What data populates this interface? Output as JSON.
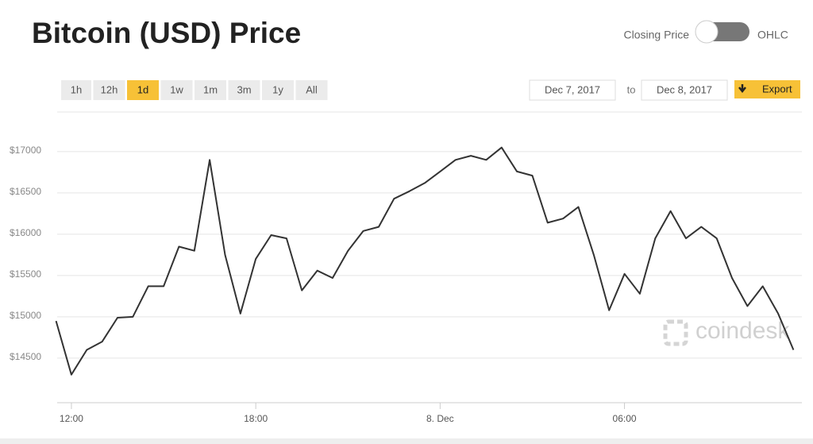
{
  "header": {
    "title": "Bitcoin (USD) Price",
    "toggle_left": "Closing Price",
    "toggle_right": "OHLC"
  },
  "ranges": [
    {
      "label": "1h"
    },
    {
      "label": "12h"
    },
    {
      "label": "1d",
      "active": true
    },
    {
      "label": "1w"
    },
    {
      "label": "1m"
    },
    {
      "label": "3m"
    },
    {
      "label": "1y"
    },
    {
      "label": "All"
    }
  ],
  "date_from": "Dec 7, 2017",
  "date_sep": "to",
  "date_to": "Dec 8, 2017",
  "export": "Export",
  "watermark": "coindesk",
  "chart_data": {
    "type": "line",
    "color": "#333333",
    "categories": [
      null,
      "12:00",
      null,
      null,
      null,
      null,
      null,
      null,
      null,
      null,
      null,
      null,
      null,
      "18:00",
      null,
      null,
      null,
      null,
      null,
      null,
      null,
      null,
      null,
      null,
      null,
      "8. Dec",
      null,
      null,
      null,
      null,
      null,
      null,
      null,
      null,
      null,
      null,
      null,
      "06:00",
      null,
      null,
      null,
      null,
      null,
      null,
      null,
      null,
      null,
      null,
      null
    ],
    "values": [
      14950,
      14300,
      14600,
      14700,
      14990,
      15000,
      15370,
      15370,
      15850,
      15800,
      16900,
      15750,
      15040,
      15700,
      15990,
      15950,
      15320,
      15560,
      15470,
      15800,
      16040,
      16090,
      16430,
      16520,
      16620,
      16760,
      16900,
      16950,
      16900,
      17050,
      16760,
      16710,
      16140,
      16190,
      16330,
      15750,
      15080,
      15520,
      15280,
      15950,
      16280,
      15950,
      16090,
      15950,
      15470,
      15130,
      15370,
      15040,
      14600
    ],
    "ylim": [
      13980,
      17480
    ],
    "yticks": [
      {
        "value": 14500,
        "label": "$14500"
      },
      {
        "value": 15000,
        "label": "$15000"
      },
      {
        "value": 15500,
        "label": "$15500"
      },
      {
        "value": 16000,
        "label": "$16000"
      },
      {
        "value": 16500,
        "label": "$16500"
      },
      {
        "value": 17000,
        "label": "$17000"
      }
    ],
    "grid": true
  }
}
